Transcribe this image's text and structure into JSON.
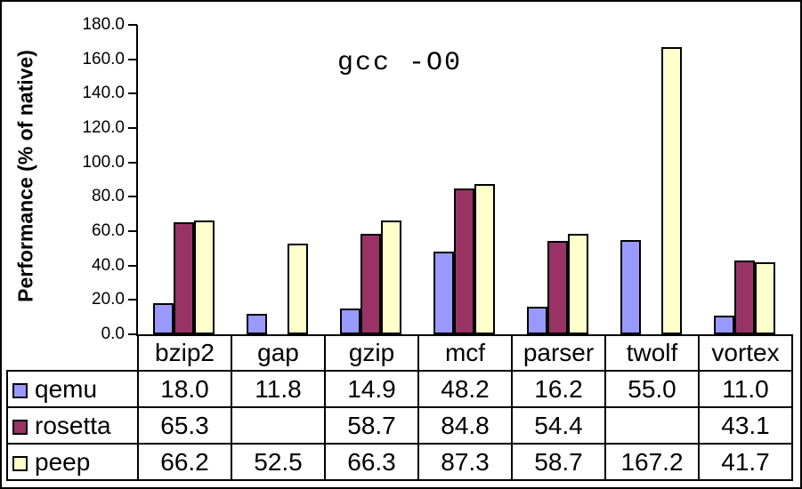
{
  "chart_data": {
    "type": "bar",
    "title": "gcc -O0",
    "ylabel": "Performance (% of native)",
    "xlabel": "",
    "categories": [
      "bzip2",
      "gap",
      "gzip",
      "mcf",
      "parser",
      "twolf",
      "vortex"
    ],
    "series": [
      {
        "name": "qemu",
        "color": "#9999FF",
        "values": [
          18.0,
          11.8,
          14.9,
          48.2,
          16.2,
          55.0,
          11.0
        ]
      },
      {
        "name": "rosetta",
        "color": "#993366",
        "values": [
          65.3,
          null,
          58.7,
          84.8,
          54.4,
          null,
          43.1
        ]
      },
      {
        "name": "peep",
        "color": "#FFFFCC",
        "values": [
          66.2,
          52.5,
          66.3,
          87.3,
          58.7,
          167.2,
          41.7
        ]
      }
    ],
    "table_values": [
      [
        "18.0",
        "11.8",
        "14.9",
        "48.2",
        "16.2",
        "55.0",
        "11.0"
      ],
      [
        "65.3",
        "",
        "58.7",
        "84.8",
        "54.4",
        "",
        "43.1"
      ],
      [
        "66.2",
        "52.5",
        "66.3",
        "87.3",
        "58.7",
        "167.2",
        "41.7"
      ]
    ],
    "ylim": [
      0,
      180
    ],
    "ytick_step": 20,
    "ytick_labels": [
      "180.0",
      "160.0",
      "140.0",
      "120.0",
      "100.0",
      "80.0",
      "60.0",
      "40.0",
      "20.0",
      "0.0"
    ],
    "grid": false,
    "legend_position": "table-left",
    "axis_color": "#000000",
    "background_color": "#FFFFFF"
  }
}
